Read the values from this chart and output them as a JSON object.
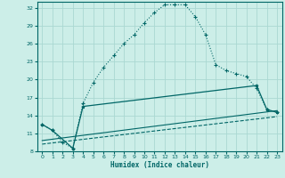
{
  "xlabel": "Humidex (Indice chaleur)",
  "bg_color": "#cceee8",
  "grid_color": "#aad8d2",
  "line_color": "#006666",
  "xlim": [
    -0.5,
    23.5
  ],
  "ylim": [
    8,
    33
  ],
  "xticks": [
    0,
    1,
    2,
    3,
    4,
    5,
    6,
    7,
    8,
    9,
    10,
    11,
    12,
    13,
    14,
    15,
    16,
    17,
    18,
    19,
    20,
    21,
    22,
    23
  ],
  "yticks": [
    8,
    11,
    14,
    17,
    20,
    23,
    26,
    29,
    32
  ],
  "curve1_x": [
    0,
    1,
    2,
    3,
    4,
    5,
    6,
    7,
    8,
    9,
    10,
    11,
    12,
    13,
    14,
    15,
    16,
    17,
    18,
    19,
    20,
    21,
    22,
    23
  ],
  "curve1_y": [
    12.5,
    11.5,
    9.5,
    8.5,
    16.0,
    19.5,
    22.0,
    24.0,
    26.0,
    27.5,
    29.5,
    31.2,
    32.5,
    32.5,
    32.5,
    30.5,
    27.5,
    22.5,
    21.5,
    21.0,
    20.5,
    18.5,
    15.0,
    14.5
  ],
  "curve2_x": [
    0,
    1,
    3,
    4,
    21,
    22,
    23
  ],
  "curve2_y": [
    12.5,
    11.5,
    8.5,
    15.5,
    19.0,
    15.0,
    14.5
  ],
  "curve3_x": [
    0,
    23
  ],
  "curve3_y": [
    9.8,
    14.8
  ],
  "curve4_x": [
    0,
    23
  ],
  "curve4_y": [
    9.2,
    13.8
  ]
}
